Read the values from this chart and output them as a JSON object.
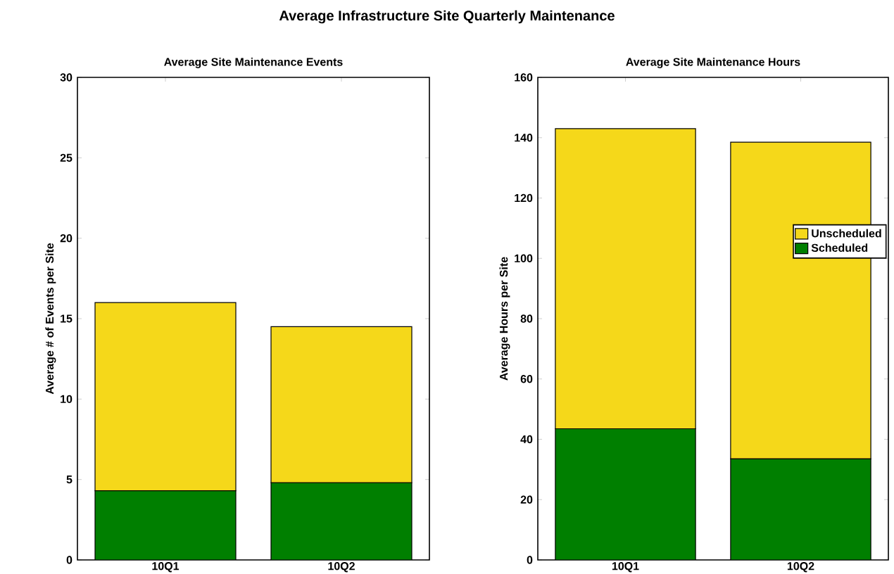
{
  "chart_data": [
    {
      "type": "bar",
      "stacked": true,
      "title": "Average Site Maintenance Events",
      "ylabel": "Average # of Events per Site",
      "annotations": [
        "Average Infrastructure Site Quarterly Maintenance"
      ],
      "categories": [
        "10Q1",
        "10Q2"
      ],
      "series": [
        {
          "color": "#007f00",
          "values": [
            4.3,
            4.8
          ]
        },
        {
          "color": "#f5d81a",
          "values": [
            11.7,
            9.7
          ]
        }
      ],
      "ylim": [
        0,
        30
      ],
      "yticks": [
        0,
        5,
        10,
        15,
        20,
        25,
        30
      ],
      "legend": false
    },
    {
      "type": "bar",
      "stacked": true,
      "title": "Average Site Maintenance Hours",
      "ylabel": "Average Hours per Site",
      "categories": [
        "10Q1",
        "10Q2"
      ],
      "series": [
        {
          "name": "Scheduled",
          "color": "#007f00",
          "values": [
            43.5,
            33.5
          ]
        },
        {
          "name": "Unscheduled",
          "color": "#f5d81a",
          "values": [
            99.5,
            105
          ]
        }
      ],
      "ylim": [
        0,
        160
      ],
      "yticks": [
        0,
        20,
        40,
        60,
        80,
        100,
        120,
        140,
        160
      ],
      "legend": "right"
    }
  ]
}
